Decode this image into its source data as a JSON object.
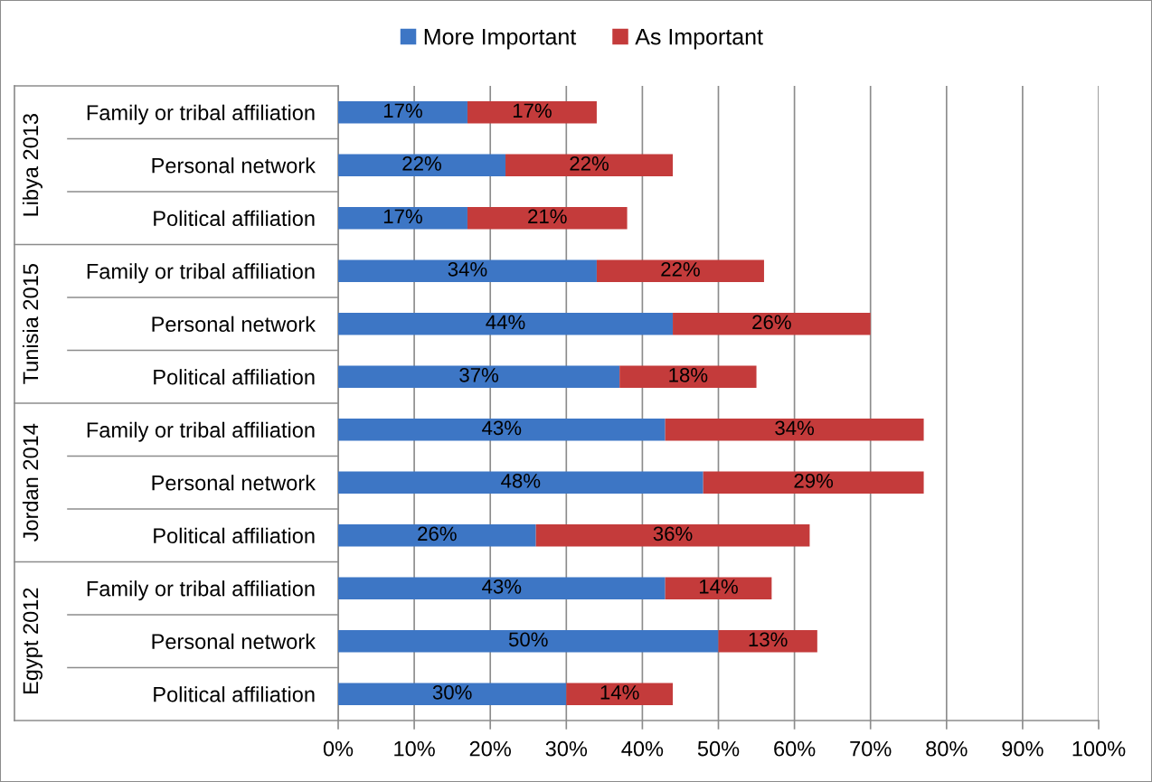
{
  "chart_data": {
    "type": "bar",
    "orientation": "horizontal",
    "stacked": true,
    "categories": [
      "Family or tribal affiliation",
      "Personal network",
      "Political affiliation",
      "Family or tribal affiliation",
      "Personal network",
      "Political affiliation",
      "Family or tribal affiliation",
      "Personal network",
      "Political affiliation",
      "Family or tribal affiliation",
      "Personal network",
      "Political affiliation"
    ],
    "annotations": [
      "Libya 2013",
      "Tunisia 2015",
      "Jordan 2014",
      "Egypt 2012"
    ],
    "series": [
      {
        "name": "More Important",
        "color": "#3d76c5",
        "values": [
          17,
          22,
          17,
          34,
          44,
          37,
          43,
          48,
          26,
          43,
          50,
          30
        ],
        "value_labels": [
          "17%",
          "22%",
          "17%",
          "34%",
          "44%",
          "37%",
          "43%",
          "48%",
          "26%",
          "43%",
          "50%",
          "30%"
        ]
      },
      {
        "name": "As Important",
        "color": "#c43b3b",
        "values": [
          17,
          22,
          21,
          22,
          26,
          18,
          34,
          29,
          36,
          14,
          13,
          14
        ],
        "value_labels": [
          "17%",
          "22%",
          "21%",
          "22%",
          "26%",
          "18%",
          "34%",
          "29%",
          "36%",
          "14%",
          "13%",
          "14%"
        ]
      }
    ],
    "xlim": [
      0,
      100
    ],
    "xticks": [
      {
        "value": 0,
        "label": "0%"
      },
      {
        "value": 10,
        "label": "10%"
      },
      {
        "value": 20,
        "label": "20%"
      },
      {
        "value": 30,
        "label": "30%"
      },
      {
        "value": 40,
        "label": "40%"
      },
      {
        "value": 50,
        "label": "50%"
      },
      {
        "value": 60,
        "label": "60%"
      },
      {
        "value": 70,
        "label": "70%"
      },
      {
        "value": 80,
        "label": "80%"
      },
      {
        "value": 90,
        "label": "90%"
      },
      {
        "value": 100,
        "label": "100%"
      }
    ],
    "grid": "x",
    "legend": "top"
  }
}
